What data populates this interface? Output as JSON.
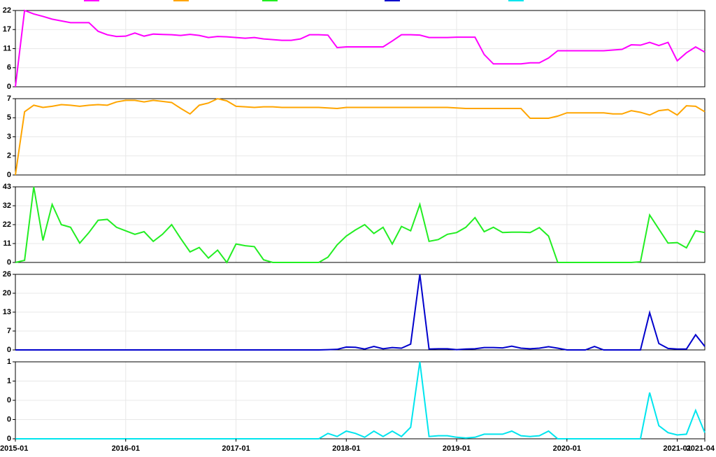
{
  "chart_data": {
    "type": "line",
    "grid": true,
    "x": [
      "2015-01",
      "2015-02",
      "2015-03",
      "2015-04",
      "2015-05",
      "2015-06",
      "2015-07",
      "2015-08",
      "2015-09",
      "2015-10",
      "2015-11",
      "2015-12",
      "2016-01",
      "2016-02",
      "2016-03",
      "2016-04",
      "2016-05",
      "2016-06",
      "2016-07",
      "2016-08",
      "2016-09",
      "2016-10",
      "2016-11",
      "2016-12",
      "2017-01",
      "2017-02",
      "2017-03",
      "2017-04",
      "2017-05",
      "2017-06",
      "2017-07",
      "2017-08",
      "2017-09",
      "2017-10",
      "2017-11",
      "2017-12",
      "2018-01",
      "2018-02",
      "2018-03",
      "2018-04",
      "2018-05",
      "2018-06",
      "2018-07",
      "2018-08",
      "2018-09",
      "2018-10",
      "2018-11",
      "2018-12",
      "2019-01",
      "2019-02",
      "2019-03",
      "2019-04",
      "2019-05",
      "2019-06",
      "2019-07",
      "2019-08",
      "2019-09",
      "2019-10",
      "2019-11",
      "2019-12",
      "2020-01",
      "2020-02",
      "2020-03",
      "2020-04",
      "2020-05",
      "2020-06",
      "2020-07",
      "2020-08",
      "2020-09",
      "2020-10",
      "2020-11",
      "2020-12",
      "2021-01",
      "2021-02",
      "2021-03",
      "2021-04"
    ],
    "xticks": [
      "2015-01",
      "2016-01",
      "2017-01",
      "2018-01",
      "2019-01",
      "2020-01",
      "2021-01",
      "2021-04"
    ],
    "panels": [
      {
        "ylim": [
          0,
          22
        ],
        "yticks": [
          0,
          {
            "value": 5.5,
            "label": "6"
          },
          11,
          {
            "value": 16.5,
            "label": "17"
          },
          22
        ],
        "series": [
          {
            "color": "#ff00ff",
            "values": [
              0,
              22,
              21,
              20.3,
              19.5,
              19,
              18.5,
              18.5,
              18.5,
              16,
              15,
              14.5,
              14.6,
              15.5,
              14.6,
              15.2,
              15.1,
              15,
              14.8,
              15.1,
              14.8,
              14.2,
              14.5,
              14.4,
              14.2,
              14,
              14.2,
              13.8,
              13.6,
              13.4,
              13.4,
              13.8,
              15,
              15,
              14.9,
              11.3,
              11.5,
              11.5,
              11.5,
              11.5,
              11.5,
              13.2,
              15,
              15,
              14.9,
              14.2,
              14.2,
              14.2,
              14.3,
              14.3,
              14.3,
              9.3,
              6.6,
              6.6,
              6.6,
              6.6,
              6.9,
              6.9,
              8.3,
              10.4,
              10.4,
              10.4,
              10.4,
              10.4,
              10.4,
              10.6,
              10.8,
              12.1,
              12,
              12.8,
              11.9,
              12.8,
              7.5,
              9.8,
              11.5,
              10
            ]
          }
        ]
      },
      {
        "ylim": [
          0,
          7
        ],
        "yticks": [
          0,
          {
            "value": 1.75,
            "label": "2"
          },
          {
            "value": 3.5,
            "label": "3"
          },
          {
            "value": 5.25,
            "label": "5"
          },
          7
        ],
        "series": [
          {
            "color": "#ffa500",
            "values": [
              0,
              5.8,
              6.4,
              6.2,
              6.3,
              6.45,
              6.4,
              6.3,
              6.4,
              6.45,
              6.4,
              6.7,
              6.85,
              6.85,
              6.7,
              6.85,
              6.75,
              6.65,
              6.1,
              5.6,
              6.4,
              6.6,
              7,
              6.8,
              6.3,
              6.25,
              6.2,
              6.25,
              6.25,
              6.2,
              6.2,
              6.2,
              6.2,
              6.2,
              6.15,
              6.1,
              6.2,
              6.2,
              6.2,
              6.2,
              6.2,
              6.2,
              6.2,
              6.2,
              6.2,
              6.2,
              6.2,
              6.2,
              6.15,
              6.1,
              6.1,
              6.1,
              6.1,
              6.1,
              6.1,
              6.1,
              5.2,
              5.2,
              5.2,
              5.4,
              5.7,
              5.7,
              5.7,
              5.7,
              5.7,
              5.6,
              5.6,
              5.9,
              5.75,
              5.5,
              5.9,
              6,
              5.5,
              6.35,
              6.3,
              5.8
            ]
          }
        ]
      },
      {
        "ylim": [
          0,
          43
        ],
        "yticks": [
          0,
          {
            "value": 10.75,
            "label": "11"
          },
          {
            "value": 21.5,
            "label": "22"
          },
          {
            "value": 32.25,
            "label": "32"
          },
          43
        ],
        "series": [
          {
            "color": "#22ee22",
            "values": [
              0,
              1.2,
              43,
              12.5,
              33,
              21.5,
              20,
              11,
              17,
              24,
              24.5,
              20,
              18,
              16,
              17.5,
              12,
              16,
              21.5,
              13.5,
              6,
              8.5,
              2.5,
              7,
              0,
              10.5,
              9.5,
              9,
              1.5,
              0,
              0,
              0,
              0,
              0,
              0,
              3,
              10,
              15,
              18.5,
              21.5,
              16.5,
              20,
              10.5,
              20.5,
              18,
              33,
              12,
              13,
              16,
              17,
              20,
              25.5,
              17.5,
              20,
              17,
              17.2,
              17.2,
              17,
              19.8,
              15,
              0,
              0,
              0,
              0,
              0,
              0,
              0,
              0,
              0,
              0.4,
              27,
              19,
              11,
              11.3,
              8.3,
              18,
              17
            ]
          }
        ]
      },
      {
        "ylim": [
          0,
          26
        ],
        "yticks": [
          0,
          {
            "value": 6.5,
            "label": "7"
          },
          13,
          {
            "value": 19.5,
            "label": "20"
          },
          26
        ],
        "series": [
          {
            "color": "#0000cc",
            "values": [
              0,
              0,
              0,
              0,
              0,
              0,
              0,
              0,
              0,
              0,
              0,
              0,
              0,
              0,
              0,
              0,
              0,
              0,
              0,
              0,
              0,
              0,
              0,
              0,
              0,
              0,
              0,
              0,
              0,
              0,
              0,
              0,
              0,
              0,
              0.1,
              0.2,
              1,
              0.9,
              0.3,
              1.2,
              0.4,
              0.8,
              0.6,
              2,
              26,
              0.3,
              0.4,
              0.4,
              0.1,
              0.3,
              0.4,
              0.8,
              0.8,
              0.7,
              1.3,
              0.6,
              0.4,
              0.6,
              1.1,
              0.6,
              0,
              0,
              0,
              1.2,
              0,
              0,
              0,
              0,
              0,
              12.8,
              2.2,
              0.5,
              0.3,
              0.3,
              5.2,
              1.2
            ]
          }
        ]
      },
      {
        "ylim": [
          0,
          1
        ],
        "yticks": [
          0,
          {
            "value": 0.25,
            "label": "0"
          },
          {
            "value": 0.5,
            "label": "0"
          },
          {
            "value": 0.75,
            "label": "1"
          },
          1
        ],
        "series": [
          {
            "color": "#00e5ee",
            "values": [
              0,
              0,
              0,
              0,
              0,
              0,
              0,
              0,
              0,
              0,
              0,
              0,
              0,
              0,
              0,
              0,
              0,
              0,
              0,
              0,
              0,
              0,
              0,
              0,
              0,
              0,
              0,
              0,
              0,
              0,
              0,
              0,
              0,
              0,
              0.07,
              0.03,
              0.1,
              0.07,
              0.02,
              0.1,
              0.03,
              0.1,
              0.03,
              0.15,
              1,
              0.03,
              0.04,
              0.04,
              0.02,
              0.01,
              0.02,
              0.06,
              0.06,
              0.06,
              0.1,
              0.04,
              0.03,
              0.04,
              0.1,
              0,
              0,
              0,
              0,
              0,
              0,
              0,
              0,
              0,
              0,
              0.6,
              0.17,
              0.08,
              0.05,
              0.06,
              0.37,
              0.08
            ]
          }
        ]
      }
    ]
  }
}
